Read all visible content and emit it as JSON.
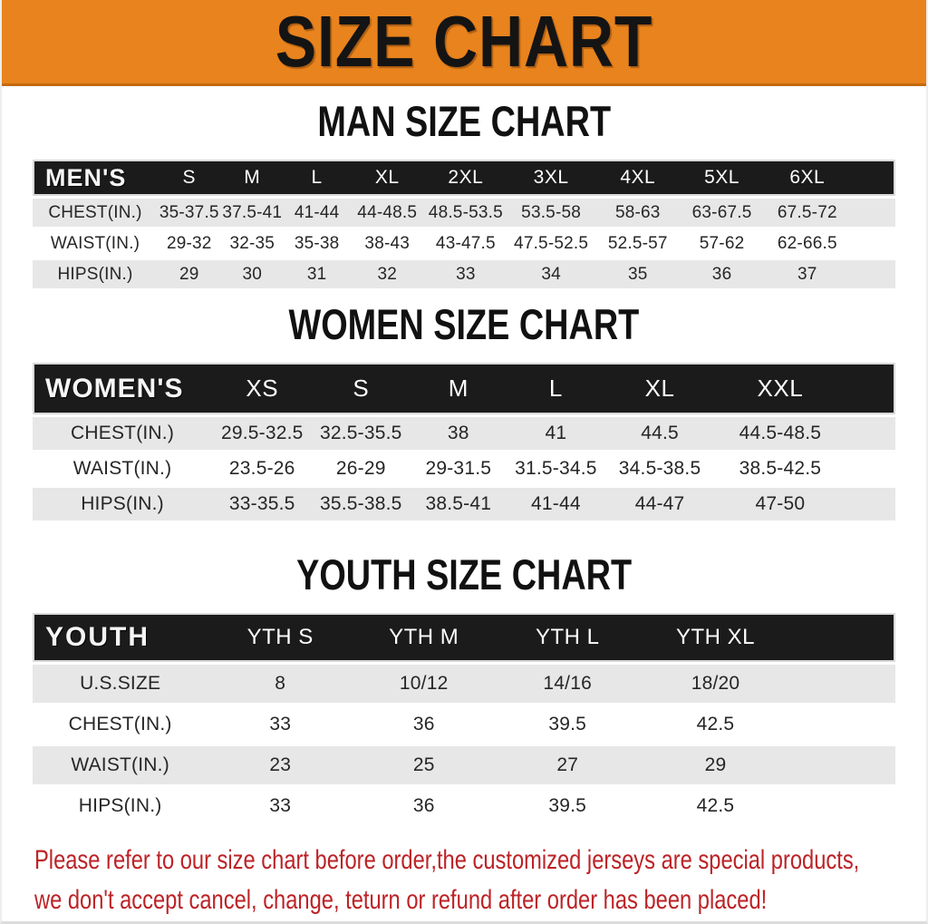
{
  "banner": {
    "title": "SIZE CHART"
  },
  "colors": {
    "banner_bg": "#E8831D",
    "banner_border": "#C56A0E",
    "header_bg": "#1B1B1B",
    "header_text": "#FFFFFF",
    "row_alt_bg": "#E7E7E8",
    "heading_text": "#111111",
    "cell_text": "#262626",
    "note_text": "#BC2327"
  },
  "sections": [
    {
      "heading": "MAN SIZE CHART",
      "table_key": "men"
    },
    {
      "heading": "WOMEN SIZE CHART",
      "table_key": "women"
    },
    {
      "heading": "YOUTH SIZE CHART",
      "table_key": "youth"
    }
  ],
  "tables": {
    "men": {
      "label": "MEN'S",
      "sizes": [
        "S",
        "M",
        "L",
        "XL",
        "2XL",
        "3XL",
        "4XL",
        "5XL",
        "6XL"
      ],
      "rows": [
        {
          "label": "CHEST(IN.)",
          "values": [
            "35-37.5",
            "37.5-41",
            "41-44",
            "44-48.5",
            "48.5-53.5",
            "53.5-58",
            "58-63",
            "63-67.5",
            "67.5-72"
          ]
        },
        {
          "label": "WAIST(IN.)",
          "values": [
            "29-32",
            "32-35",
            "35-38",
            "38-43",
            "43-47.5",
            "47.5-52.5",
            "52.5-57",
            "57-62",
            "62-66.5"
          ]
        },
        {
          "label": "HIPS(IN.)",
          "values": [
            "29",
            "30",
            "31",
            "32",
            "33",
            "34",
            "35",
            "36",
            "37"
          ]
        }
      ]
    },
    "women": {
      "label": "WOMEN'S",
      "sizes": [
        "XS",
        "S",
        "M",
        "L",
        "XL",
        "XXL"
      ],
      "rows": [
        {
          "label": "CHEST(IN.)",
          "values": [
            "29.5-32.5",
            "32.5-35.5",
            "38",
            "41",
            "44.5",
            "44.5-48.5"
          ]
        },
        {
          "label": "WAIST(IN.)",
          "values": [
            "23.5-26",
            "26-29",
            "29-31.5",
            "31.5-34.5",
            "34.5-38.5",
            "38.5-42.5"
          ]
        },
        {
          "label": "HIPS(IN.)",
          "values": [
            "33-35.5",
            "35.5-38.5",
            "38.5-41",
            "41-44",
            "44-47",
            "47-50"
          ]
        }
      ]
    },
    "youth": {
      "label": "YOUTH",
      "sizes": [
        "YTH S",
        "YTH M",
        "YTH L",
        "YTH XL"
      ],
      "rows": [
        {
          "label": "U.S.SIZE",
          "values": [
            "8",
            "10/12",
            "14/16",
            "18/20"
          ]
        },
        {
          "label": "CHEST(IN.)",
          "values": [
            "33",
            "36",
            "39.5",
            "42.5"
          ]
        },
        {
          "label": "WAIST(IN.)",
          "values": [
            "23",
            "25",
            "27",
            "29"
          ]
        },
        {
          "label": "HIPS(IN.)",
          "values": [
            "33",
            "36",
            "39.5",
            "42.5"
          ]
        }
      ]
    }
  },
  "note": {
    "line1": "Please refer to our size chart before order,the customized jerseys are special products,",
    "line2": "we don't accept cancel, change, teturn or refund after order has been placed!"
  }
}
